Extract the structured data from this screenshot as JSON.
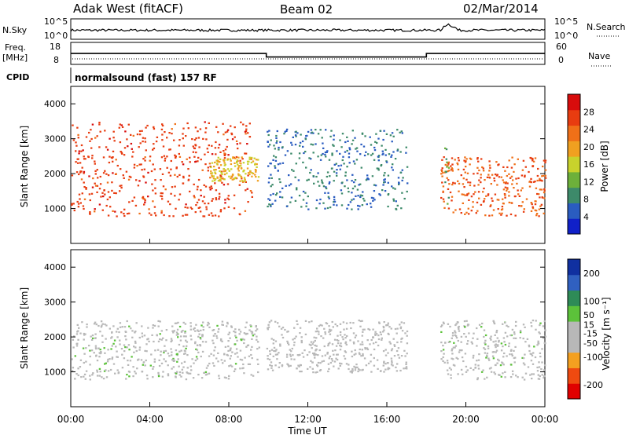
{
  "header": {
    "station": "Adak West (fitACF)",
    "beam": "Beam 02",
    "date": "02/Mar/2014"
  },
  "panels": {
    "sky": {
      "left_label": "N.Sky",
      "right_label": "N.Search",
      "ticks": [
        "10^5",
        "10^0"
      ]
    },
    "freq": {
      "left_label_1": "Freq.",
      "left_label_2": "[MHz]",
      "right_label": "Nave",
      "left_ticks": [
        "18",
        "8"
      ],
      "right_ticks": [
        "60",
        "0"
      ]
    },
    "cpid": {
      "label": "CPID",
      "program": "normalsound (fast) 157 RF"
    }
  },
  "colors": {
    "power_scale": [
      "#1020c8",
      "#2a5cc0",
      "#3d8a6a",
      "#6db03a",
      "#c8d22c",
      "#f0a020",
      "#f07018",
      "#e83c10",
      "#d80c0c"
    ],
    "velocity_scale": [
      "#e00000",
      "#ef4a10",
      "#f4a020",
      "#b8b8b8",
      "#b8b8b8",
      "#5cc23a",
      "#2e8b57",
      "#3060c0",
      "#1030a0"
    ],
    "ground_scatter": "#b4b4b4"
  },
  "chart_data": [
    {
      "type": "heatmap",
      "panel": "power",
      "ylabel": "Slant Range [km]",
      "yticks": [
        "4000",
        "3000",
        "2000",
        "1000"
      ],
      "ylim": [
        0,
        4500
      ],
      "colorbar_label": "Power [dB]",
      "colorbar_ticks": [
        "28",
        "24",
        "20",
        "16",
        "12",
        "8",
        "4"
      ],
      "colorbar_range": [
        0,
        32
      ],
      "scatter_regions": [
        {
          "hours": [
            0.0,
            9.2
          ],
          "range_km": [
            800,
            3500
          ],
          "level_db": 28
        },
        {
          "hours": [
            7.0,
            9.5
          ],
          "range_km": [
            1800,
            2500
          ],
          "level_db": 18
        },
        {
          "hours": [
            9.9,
            17.0
          ],
          "range_km": [
            1000,
            3300
          ],
          "level_db": 6
        },
        {
          "hours": [
            18.7,
            24.0
          ],
          "range_km": [
            800,
            2500
          ],
          "level_db": 26
        },
        {
          "hours": [
            18.9,
            19.1
          ],
          "range_km": [
            1000,
            3000
          ],
          "level_db": 10
        }
      ]
    },
    {
      "type": "heatmap",
      "panel": "velocity",
      "ylabel": "Slant Range [km]",
      "yticks": [
        "4000",
        "3000",
        "2000",
        "1000"
      ],
      "ylim": [
        0,
        4500
      ],
      "colorbar_label": "Velocity [m s⁻¹]",
      "colorbar_ticks": [
        "200",
        "100",
        "50",
        "15",
        "-15",
        "-50",
        "-100",
        "-200"
      ],
      "colorbar_range": [
        -250,
        250
      ],
      "scatter_regions": [
        {
          "hours": [
            0.0,
            9.5
          ],
          "range_km": [
            800,
            2500
          ],
          "velocity": 0
        },
        {
          "hours": [
            9.9,
            17.0
          ],
          "range_km": [
            1000,
            2500
          ],
          "velocity": -50
        },
        {
          "hours": [
            18.7,
            24.0
          ],
          "range_km": [
            800,
            2500
          ],
          "velocity": 0
        }
      ],
      "xticks": [
        "00:00",
        "04:00",
        "08:00",
        "12:00",
        "16:00",
        "20:00",
        "00:00"
      ],
      "xlabel": "Time UT"
    },
    {
      "type": "line",
      "panel": "frequency",
      "series": [
        {
          "segments": [
            [
              0.0,
              9.9,
              13.5
            ],
            [
              9.9,
              18.0,
              11.0
            ],
            [
              18.0,
              24.0,
              13.5
            ]
          ]
        }
      ]
    }
  ]
}
